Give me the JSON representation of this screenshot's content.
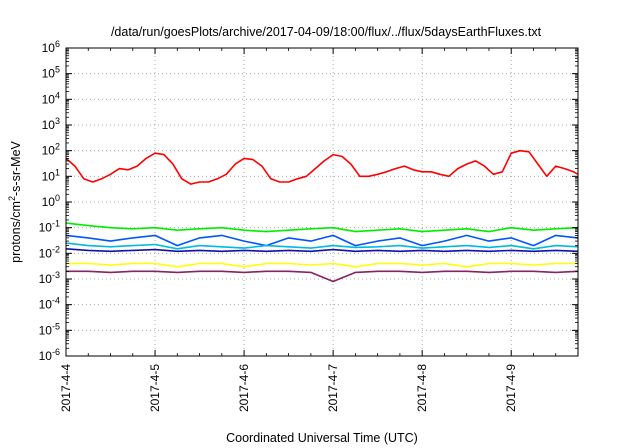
{
  "chart_data": {
    "type": "line",
    "title": "/data/run/goesPlots/archive/2017-04-09/18:00/flux/../flux/5daysEarthFluxes.txt",
    "xlabel": "Coordinated Universal Time (UTC)",
    "ylabel": {
      "pre": "protons/cm",
      "sup": "2",
      "post": "-s-sr-MeV"
    },
    "yscale": "log",
    "ylim_exp": [
      -6,
      6
    ],
    "ytick_exponents": [
      -6,
      -5,
      -4,
      -3,
      -2,
      -1,
      0,
      1,
      2,
      3,
      4,
      5,
      6
    ],
    "xlim": [
      "2017-04-04T00:00",
      "2017-04-09T18:00"
    ],
    "xticks": [
      "2017-4-4",
      "2017-4-5",
      "2017-4-6",
      "2017-4-7",
      "2017-4-8",
      "2017-4-9"
    ],
    "grid": true,
    "series": [
      {
        "color": "#ff0000",
        "x": [
          0.0,
          0.1,
          0.2,
          0.3,
          0.4,
          0.5,
          0.6,
          0.7,
          0.8,
          0.9,
          1.0,
          1.1,
          1.2,
          1.3,
          1.4,
          1.5,
          1.6,
          1.7,
          1.8,
          1.9,
          2.0,
          2.1,
          2.2,
          2.3,
          2.4,
          2.5,
          2.6,
          2.7,
          2.8,
          2.9,
          3.0,
          3.1,
          3.2,
          3.3,
          3.4,
          3.5,
          3.6,
          3.7,
          3.8,
          3.9,
          4.0,
          4.1,
          4.2,
          4.3,
          4.4,
          4.5,
          4.6,
          4.7,
          4.8,
          4.9,
          5.0,
          5.1,
          5.2,
          5.3,
          5.4,
          5.5,
          5.6,
          5.7,
          5.75
        ],
        "y": [
          50,
          25,
          8,
          6,
          8,
          12,
          20,
          18,
          25,
          50,
          80,
          70,
          30,
          8,
          5,
          6,
          6,
          8,
          12,
          30,
          50,
          45,
          25,
          8,
          6,
          6,
          8,
          10,
          20,
          40,
          70,
          60,
          30,
          10,
          10,
          12,
          15,
          20,
          25,
          18,
          15,
          15,
          12,
          10,
          20,
          30,
          40,
          25,
          12,
          15,
          80,
          100,
          90,
          30,
          10,
          25,
          20,
          15,
          12
        ]
      },
      {
        "color": "#00ee00",
        "x": [
          0.0,
          0.25,
          0.5,
          0.75,
          1.0,
          1.25,
          1.5,
          1.75,
          2.0,
          2.25,
          2.5,
          2.75,
          3.0,
          3.25,
          3.5,
          3.75,
          4.0,
          4.25,
          4.5,
          4.75,
          5.0,
          5.25,
          5.5,
          5.75
        ],
        "y": [
          0.15,
          0.12,
          0.1,
          0.09,
          0.1,
          0.08,
          0.09,
          0.1,
          0.08,
          0.07,
          0.08,
          0.09,
          0.1,
          0.07,
          0.08,
          0.09,
          0.07,
          0.08,
          0.09,
          0.07,
          0.1,
          0.08,
          0.09,
          0.1
        ]
      },
      {
        "color": "#0055ff",
        "x": [
          0.0,
          0.25,
          0.5,
          0.75,
          1.0,
          1.25,
          1.5,
          1.75,
          2.0,
          2.25,
          2.5,
          2.75,
          3.0,
          3.25,
          3.5,
          3.75,
          4.0,
          4.25,
          4.5,
          4.75,
          5.0,
          5.25,
          5.5,
          5.75
        ],
        "y": [
          0.05,
          0.04,
          0.03,
          0.04,
          0.05,
          0.02,
          0.04,
          0.05,
          0.03,
          0.02,
          0.04,
          0.03,
          0.05,
          0.02,
          0.03,
          0.04,
          0.02,
          0.03,
          0.05,
          0.03,
          0.04,
          0.02,
          0.05,
          0.04
        ]
      },
      {
        "color": "#00bbdd",
        "x": [
          0.0,
          0.25,
          0.5,
          0.75,
          1.0,
          1.25,
          1.5,
          1.75,
          2.0,
          2.25,
          2.5,
          2.75,
          3.0,
          3.25,
          3.5,
          3.75,
          4.0,
          4.25,
          4.5,
          4.75,
          5.0,
          5.25,
          5.5,
          5.75
        ],
        "y": [
          0.025,
          0.02,
          0.018,
          0.02,
          0.022,
          0.015,
          0.02,
          0.018,
          0.016,
          0.02,
          0.018,
          0.016,
          0.02,
          0.017,
          0.018,
          0.02,
          0.016,
          0.018,
          0.02,
          0.017,
          0.02,
          0.015,
          0.02,
          0.018
        ]
      },
      {
        "color": "#1111aa",
        "x": [
          0.0,
          0.25,
          0.5,
          0.75,
          1.0,
          1.25,
          1.5,
          1.75,
          2.0,
          2.25,
          2.5,
          2.75,
          3.0,
          3.25,
          3.5,
          3.75,
          4.0,
          4.25,
          4.5,
          4.75,
          5.0,
          5.25,
          5.5,
          5.75
        ],
        "y": [
          0.015,
          0.013,
          0.012,
          0.013,
          0.014,
          0.012,
          0.013,
          0.012,
          0.013,
          0.012,
          0.013,
          0.012,
          0.014,
          0.012,
          0.013,
          0.012,
          0.013,
          0.012,
          0.013,
          0.012,
          0.013,
          0.012,
          0.013,
          0.012
        ]
      },
      {
        "color": "#ffff00",
        "x": [
          0.0,
          0.25,
          0.5,
          0.75,
          1.0,
          1.25,
          1.5,
          1.75,
          2.0,
          2.25,
          2.5,
          2.75,
          3.0,
          3.25,
          3.5,
          3.75,
          4.0,
          4.25,
          4.5,
          4.75,
          5.0,
          5.25,
          5.5,
          5.75
        ],
        "y": [
          0.004,
          0.004,
          0.0035,
          0.004,
          0.004,
          0.003,
          0.004,
          0.004,
          0.003,
          0.004,
          0.004,
          0.0035,
          0.004,
          0.003,
          0.004,
          0.004,
          0.0035,
          0.004,
          0.003,
          0.004,
          0.004,
          0.0035,
          0.004,
          0.004
        ]
      },
      {
        "color": "#882266",
        "x": [
          0.0,
          0.25,
          0.5,
          0.75,
          1.0,
          1.25,
          1.5,
          1.75,
          2.0,
          2.25,
          2.5,
          2.75,
          3.0,
          3.25,
          3.5,
          3.75,
          4.0,
          4.25,
          4.5,
          4.75,
          5.0,
          5.25,
          5.5,
          5.75
        ],
        "y": [
          0.002,
          0.002,
          0.0018,
          0.002,
          0.002,
          0.0018,
          0.002,
          0.002,
          0.0018,
          0.002,
          0.002,
          0.0018,
          0.0008,
          0.0018,
          0.002,
          0.002,
          0.0018,
          0.002,
          0.002,
          0.0018,
          0.002,
          0.002,
          0.0018,
          0.002
        ]
      }
    ]
  }
}
